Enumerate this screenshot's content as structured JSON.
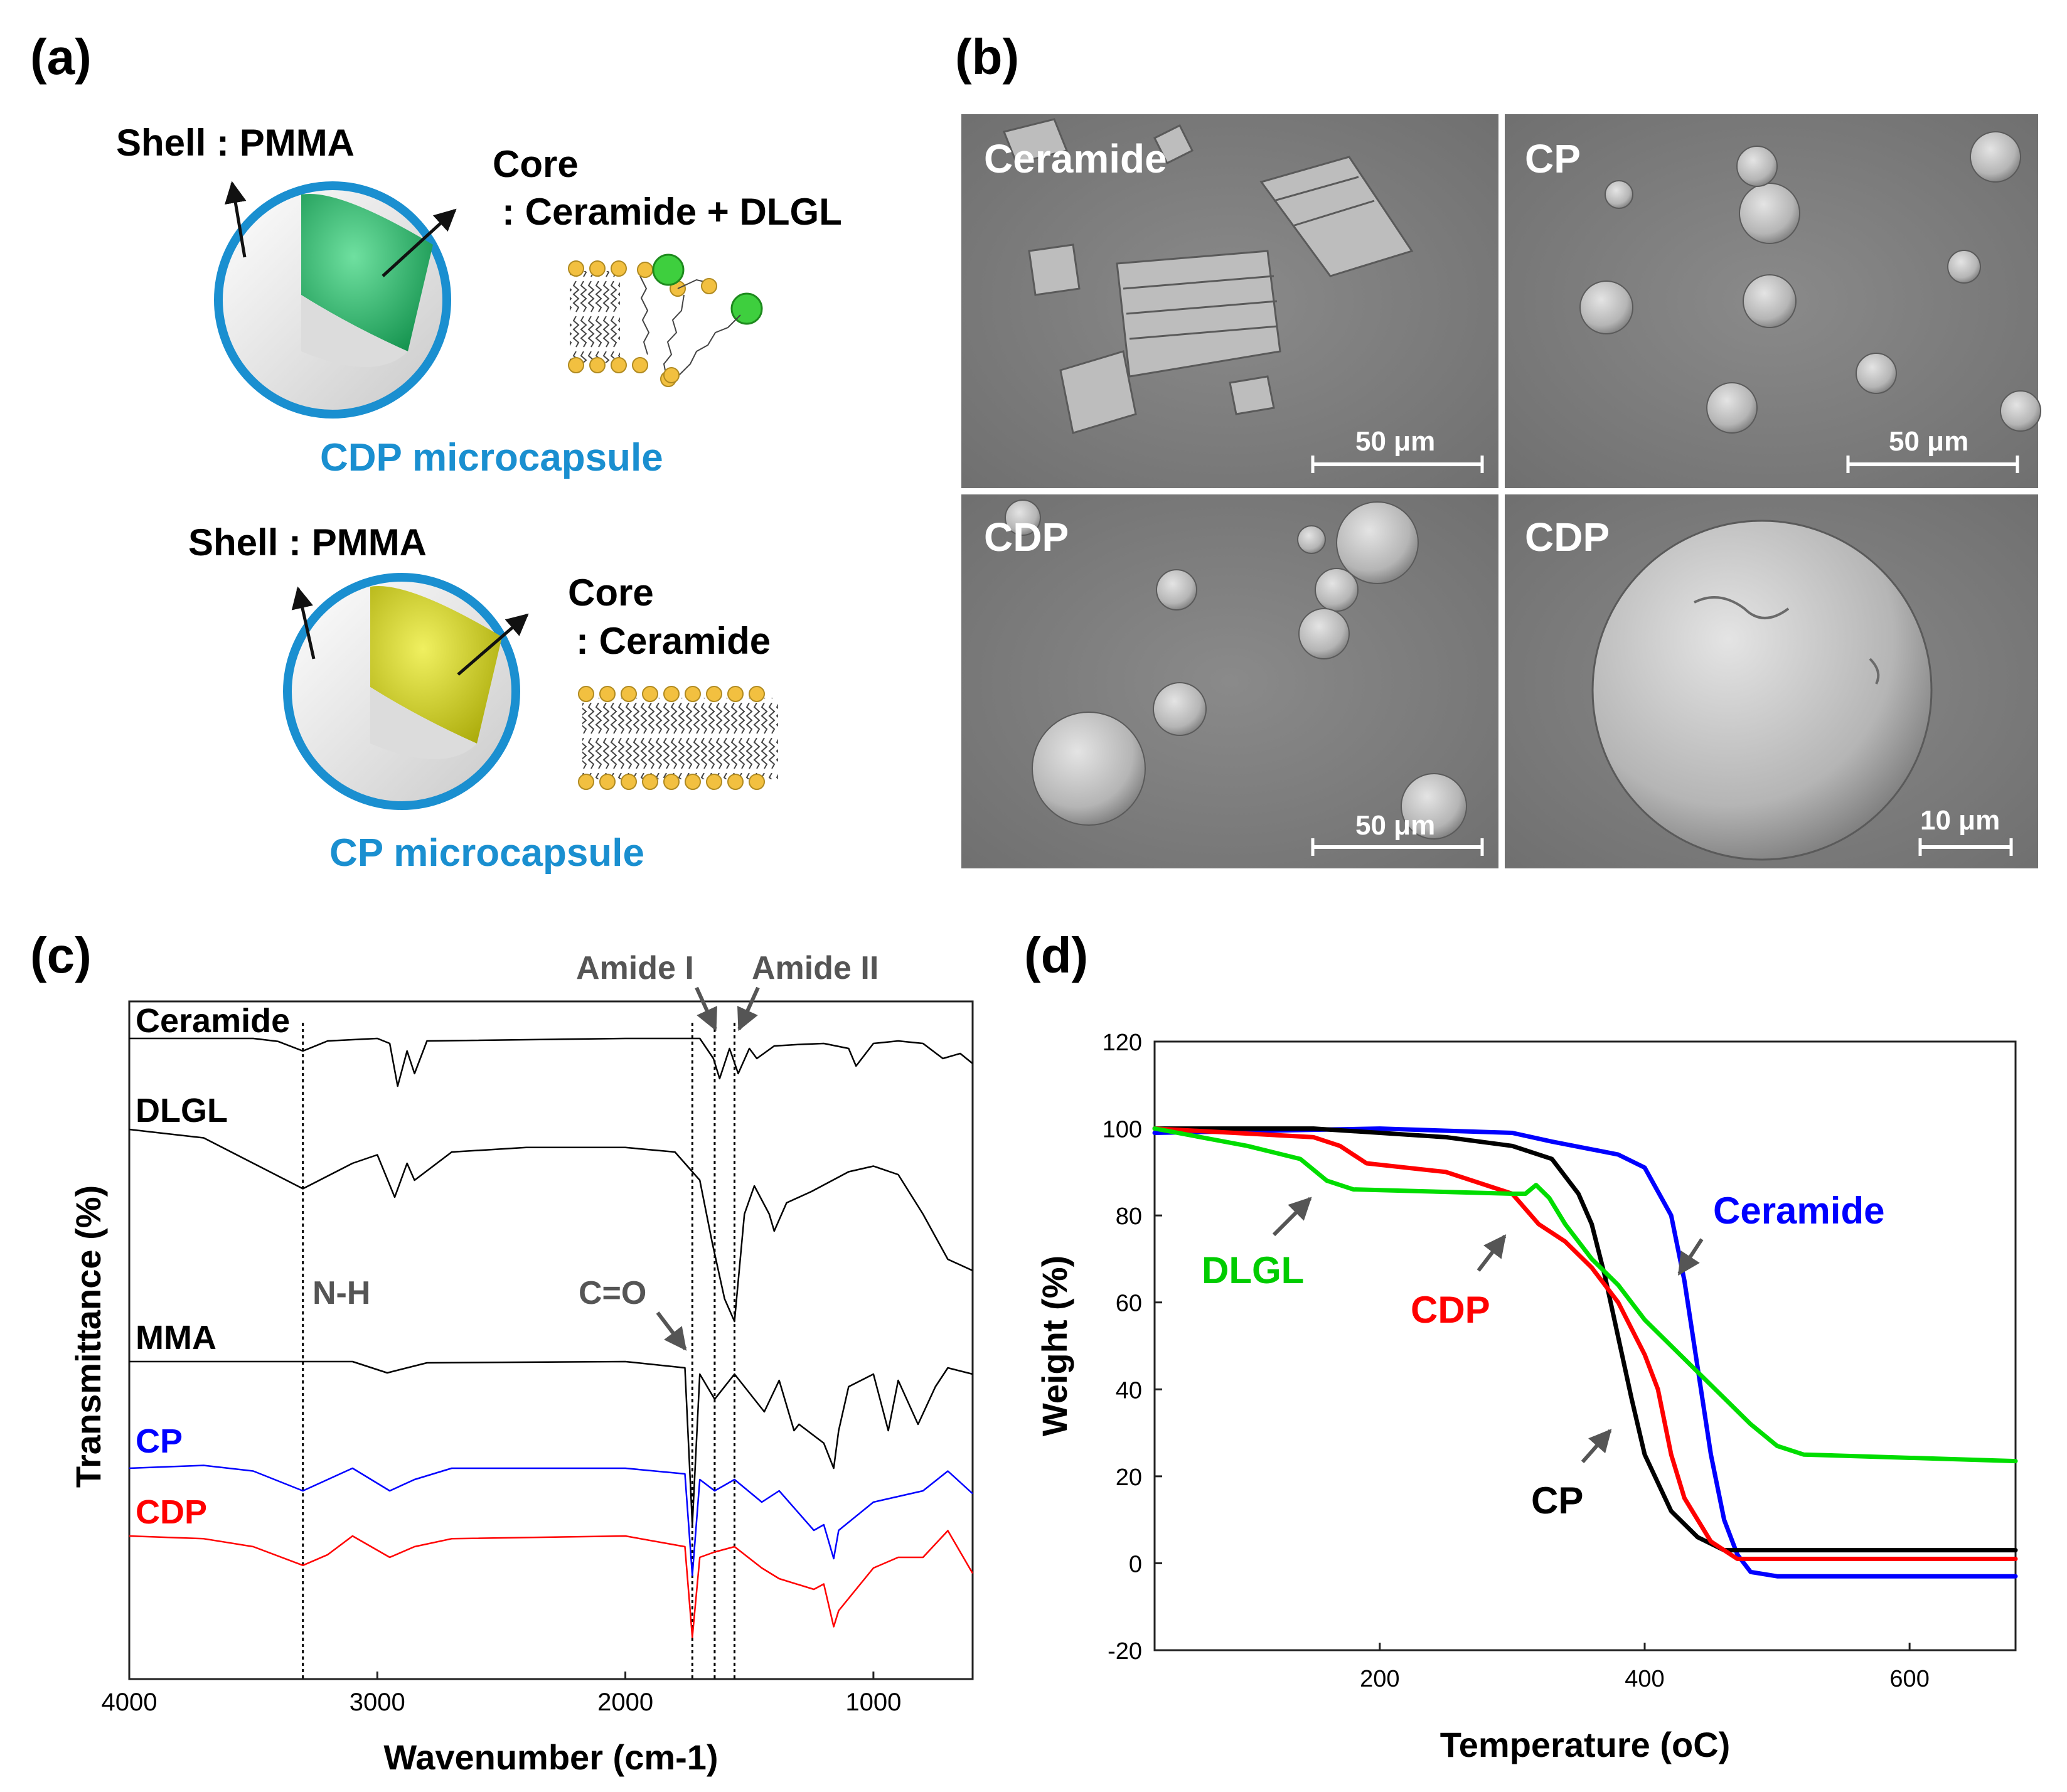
{
  "panels": {
    "a": {
      "label": "(a)",
      "cdp": {
        "shell": "Shell : PMMA",
        "core_title": "Core",
        "core_content": ": Ceramide + DLGL",
        "caption": "CDP microcapsule"
      },
      "cp": {
        "shell": "Shell : PMMA",
        "core_title": "Core",
        "core_content": ": Ceramide",
        "caption": "CP microcapsule"
      }
    },
    "b": {
      "label": "(b)",
      "images": [
        {
          "title": "Ceramide",
          "scale": "50 μm"
        },
        {
          "title": "CP",
          "scale": "50 μm"
        },
        {
          "title": "CDP",
          "scale": "50 μm"
        },
        {
          "title": "CDP",
          "scale": "10 μm"
        }
      ]
    },
    "c": {
      "label": "(c)",
      "annotations": {
        "amide1": "Amide I",
        "amide2": "Amide II",
        "nh": "N-H",
        "co": "C=O"
      }
    },
    "d": {
      "label": "(d)"
    }
  },
  "colors": {
    "accent_blue": "#1a8fd0",
    "ceramide": "#0000ff",
    "cp": "#000000",
    "cdp": "#ff0000",
    "dlgl": "#00dd00"
  },
  "chart_data": [
    {
      "id": "ftir",
      "type": "line",
      "xlabel": "Wavenumber (cm-1)",
      "ylabel": "Transmittance (%)",
      "xlim": [
        4000,
        600
      ],
      "xticks": [
        4000,
        3000,
        2000,
        1000
      ],
      "series": [
        {
          "name": "Ceramide",
          "color": "#000000",
          "points": [
            [
              4000,
              0
            ],
            [
              3500,
              0
            ],
            [
              3400,
              -6
            ],
            [
              3300,
              -25
            ],
            [
              3200,
              -5
            ],
            [
              3000,
              0
            ],
            [
              2950,
              -10
            ],
            [
              2918,
              -95
            ],
            [
              2880,
              -25
            ],
            [
              2850,
              -70
            ],
            [
              2800,
              -5
            ],
            [
              2000,
              0
            ],
            [
              1700,
              0
            ],
            [
              1645,
              -40
            ],
            [
              1620,
              -80
            ],
            [
              1580,
              -20
            ],
            [
              1545,
              -70
            ],
            [
              1500,
              -20
            ],
            [
              1470,
              -40
            ],
            [
              1400,
              -15
            ],
            [
              1300,
              -12
            ],
            [
              1200,
              -10
            ],
            [
              1100,
              -20
            ],
            [
              1070,
              -55
            ],
            [
              1000,
              -10
            ],
            [
              900,
              -5
            ],
            [
              800,
              -10
            ],
            [
              720,
              -40
            ],
            [
              650,
              -30
            ],
            [
              600,
              -50
            ]
          ]
        },
        {
          "name": "DLGL",
          "color": "#000000",
          "points": [
            [
              4000,
              0
            ],
            [
              3700,
              -15
            ],
            [
              3500,
              -60
            ],
            [
              3300,
              -105
            ],
            [
              3100,
              -60
            ],
            [
              3000,
              -45
            ],
            [
              2930,
              -120
            ],
            [
              2880,
              -60
            ],
            [
              2850,
              -90
            ],
            [
              2700,
              -40
            ],
            [
              2400,
              -32
            ],
            [
              2000,
              -32
            ],
            [
              1800,
              -40
            ],
            [
              1700,
              -90
            ],
            [
              1650,
              -200
            ],
            [
              1600,
              -300
            ],
            [
              1560,
              -340
            ],
            [
              1520,
              -150
            ],
            [
              1480,
              -100
            ],
            [
              1420,
              -150
            ],
            [
              1400,
              -180
            ],
            [
              1350,
              -130
            ],
            [
              1250,
              -110
            ],
            [
              1100,
              -75
            ],
            [
              1000,
              -65
            ],
            [
              900,
              -80
            ],
            [
              800,
              -150
            ],
            [
              700,
              -230
            ],
            [
              600,
              -250
            ]
          ]
        },
        {
          "name": "MMA",
          "color": "#000000",
          "points": [
            [
              4000,
              0
            ],
            [
              3100,
              0
            ],
            [
              2960,
              -18
            ],
            [
              2800,
              -2
            ],
            [
              2000,
              0
            ],
            [
              1760,
              -10
            ],
            [
              1730,
              -260
            ],
            [
              1700,
              -20
            ],
            [
              1640,
              -60
            ],
            [
              1560,
              -20
            ],
            [
              1440,
              -80
            ],
            [
              1380,
              -30
            ],
            [
              1320,
              -110
            ],
            [
              1300,
              -100
            ],
            [
              1200,
              -130
            ],
            [
              1160,
              -170
            ],
            [
              1140,
              -110
            ],
            [
              1100,
              -40
            ],
            [
              1000,
              -20
            ],
            [
              940,
              -110
            ],
            [
              900,
              -30
            ],
            [
              820,
              -100
            ],
            [
              750,
              -40
            ],
            [
              700,
              -10
            ],
            [
              600,
              -20
            ]
          ]
        },
        {
          "name": "CP",
          "color": "#0000ff",
          "points": [
            [
              4000,
              0
            ],
            [
              3700,
              5
            ],
            [
              3500,
              -5
            ],
            [
              3300,
              -40
            ],
            [
              3200,
              -20
            ],
            [
              3100,
              0
            ],
            [
              2950,
              -40
            ],
            [
              2850,
              -20
            ],
            [
              2700,
              0
            ],
            [
              2000,
              0
            ],
            [
              1760,
              -10
            ],
            [
              1730,
              -190
            ],
            [
              1700,
              -20
            ],
            [
              1640,
              -40
            ],
            [
              1560,
              -20
            ],
            [
              1450,
              -60
            ],
            [
              1380,
              -40
            ],
            [
              1240,
              -110
            ],
            [
              1200,
              -100
            ],
            [
              1160,
              -160
            ],
            [
              1140,
              -110
            ],
            [
              1000,
              -60
            ],
            [
              900,
              -50
            ],
            [
              800,
              -40
            ],
            [
              700,
              -5
            ],
            [
              600,
              -45
            ]
          ]
        },
        {
          "name": "CDP",
          "color": "#ff0000",
          "points": [
            [
              4000,
              0
            ],
            [
              3700,
              -5
            ],
            [
              3500,
              -20
            ],
            [
              3300,
              -55
            ],
            [
              3200,
              -35
            ],
            [
              3100,
              0
            ],
            [
              2950,
              -40
            ],
            [
              2850,
              -20
            ],
            [
              2700,
              -5
            ],
            [
              2000,
              0
            ],
            [
              1760,
              -20
            ],
            [
              1730,
              -190
            ],
            [
              1700,
              -40
            ],
            [
              1640,
              -30
            ],
            [
              1560,
              -20
            ],
            [
              1450,
              -60
            ],
            [
              1380,
              -80
            ],
            [
              1240,
              -100
            ],
            [
              1200,
              -90
            ],
            [
              1160,
              -170
            ],
            [
              1140,
              -140
            ],
            [
              1000,
              -60
            ],
            [
              900,
              -40
            ],
            [
              800,
              -40
            ],
            [
              700,
              10
            ],
            [
              600,
              -70
            ]
          ]
        }
      ]
    },
    {
      "id": "tga",
      "type": "line",
      "xlabel": "Temperature (oC)",
      "ylabel": "Weight (%)",
      "xlim": [
        30,
        680
      ],
      "ylim": [
        -20,
        120
      ],
      "xticks": [
        200,
        400,
        600
      ],
      "yticks": [
        -20,
        0,
        20,
        40,
        60,
        80,
        100,
        120
      ],
      "series": [
        {
          "name": "Ceramide",
          "color": "#0000ff",
          "points": [
            [
              30,
              99
            ],
            [
              200,
              100
            ],
            [
              300,
              99
            ],
            [
              330,
              97
            ],
            [
              380,
              94
            ],
            [
              400,
              91
            ],
            [
              420,
              80
            ],
            [
              430,
              65
            ],
            [
              440,
              45
            ],
            [
              450,
              25
            ],
            [
              460,
              10
            ],
            [
              470,
              2
            ],
            [
              480,
              -2
            ],
            [
              500,
              -3
            ],
            [
              680,
              -3
            ]
          ]
        },
        {
          "name": "CP",
          "color": "#000000",
          "points": [
            [
              30,
              100
            ],
            [
              150,
              100
            ],
            [
              250,
              98
            ],
            [
              300,
              96
            ],
            [
              330,
              93
            ],
            [
              350,
              85
            ],
            [
              360,
              78
            ],
            [
              370,
              66
            ],
            [
              380,
              52
            ],
            [
              390,
              38
            ],
            [
              400,
              25
            ],
            [
              420,
              12
            ],
            [
              440,
              6
            ],
            [
              460,
              3
            ],
            [
              680,
              3
            ]
          ]
        },
        {
          "name": "CDP",
          "color": "#ff0000",
          "points": [
            [
              30,
              100
            ],
            [
              150,
              98
            ],
            [
              170,
              96
            ],
            [
              190,
              92
            ],
            [
              250,
              90
            ],
            [
              300,
              85
            ],
            [
              320,
              78
            ],
            [
              340,
              74
            ],
            [
              360,
              68
            ],
            [
              380,
              60
            ],
            [
              400,
              48
            ],
            [
              410,
              40
            ],
            [
              420,
              25
            ],
            [
              430,
              15
            ],
            [
              450,
              5
            ],
            [
              470,
              1
            ],
            [
              680,
              1
            ]
          ]
        },
        {
          "name": "DLGL",
          "color": "#00dd00",
          "points": [
            [
              30,
              100
            ],
            [
              100,
              96
            ],
            [
              140,
              93
            ],
            [
              160,
              88
            ],
            [
              180,
              86
            ],
            [
              300,
              85
            ],
            [
              310,
              85
            ],
            [
              318,
              87
            ],
            [
              328,
              84
            ],
            [
              340,
              78
            ],
            [
              360,
              70
            ],
            [
              380,
              64
            ],
            [
              400,
              56
            ],
            [
              420,
              50
            ],
            [
              440,
              44
            ],
            [
              460,
              38
            ],
            [
              480,
              32
            ],
            [
              500,
              27
            ],
            [
              520,
              25
            ],
            [
              680,
              23.5
            ]
          ]
        }
      ],
      "labels": {
        "ceramide": "Ceramide",
        "dlgl": "DLGL",
        "cdp": "CDP",
        "cp": "CP"
      }
    }
  ]
}
